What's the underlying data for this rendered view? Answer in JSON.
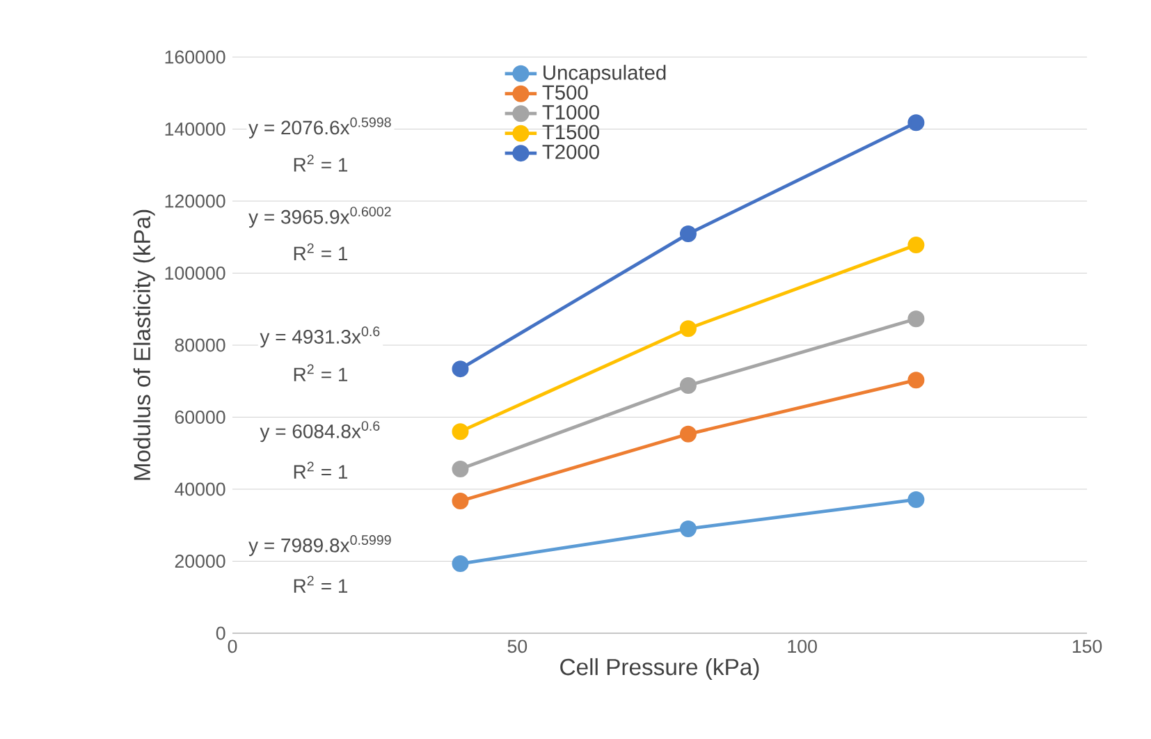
{
  "chart_data": {
    "type": "line",
    "xlabel": "Cell Pressure (kPa)",
    "ylabel": "Modulus of Elasticity (kPa)",
    "x": [
      40,
      80,
      120
    ],
    "series": [
      {
        "name": "Uncapsulated",
        "color": "#5b9bd5",
        "values": [
          19300,
          29000,
          37100
        ]
      },
      {
        "name": "T500",
        "color": "#ed7d31",
        "values": [
          36700,
          55300,
          70300
        ]
      },
      {
        "name": "T1000",
        "color": "#a5a5a5",
        "values": [
          45600,
          68800,
          87300
        ]
      },
      {
        "name": "T1500",
        "color": "#ffc000",
        "values": [
          56000,
          84600,
          107800
        ]
      },
      {
        "name": "T2000",
        "color": "#4472c4",
        "values": [
          73400,
          110900,
          141800
        ]
      }
    ],
    "xlim": [
      0,
      150
    ],
    "xticks": [
      0,
      50,
      100,
      150
    ],
    "ylim": [
      0,
      160000
    ],
    "yticks": [
      0,
      20000,
      40000,
      60000,
      80000,
      100000,
      120000,
      140000,
      160000
    ],
    "grid": "y",
    "legend": "top",
    "marker": "circle",
    "line_style": "solid",
    "annotations": [
      "y = 2076.6x$^{0.5998}$",
      "R$^{2}$ = 1",
      "y = 3965.9x$^{0.6002}$",
      "R$^{2}$ = 1",
      "y = 4931.3x$^{0.6}$",
      "R$^{2}$ = 1",
      "y = 6084.8x$^{0.6}$",
      "R$^{2}$ = 1",
      "y = 7989.8x$^{0.5999}$",
      "R$^{2}$ = 1"
    ]
  }
}
